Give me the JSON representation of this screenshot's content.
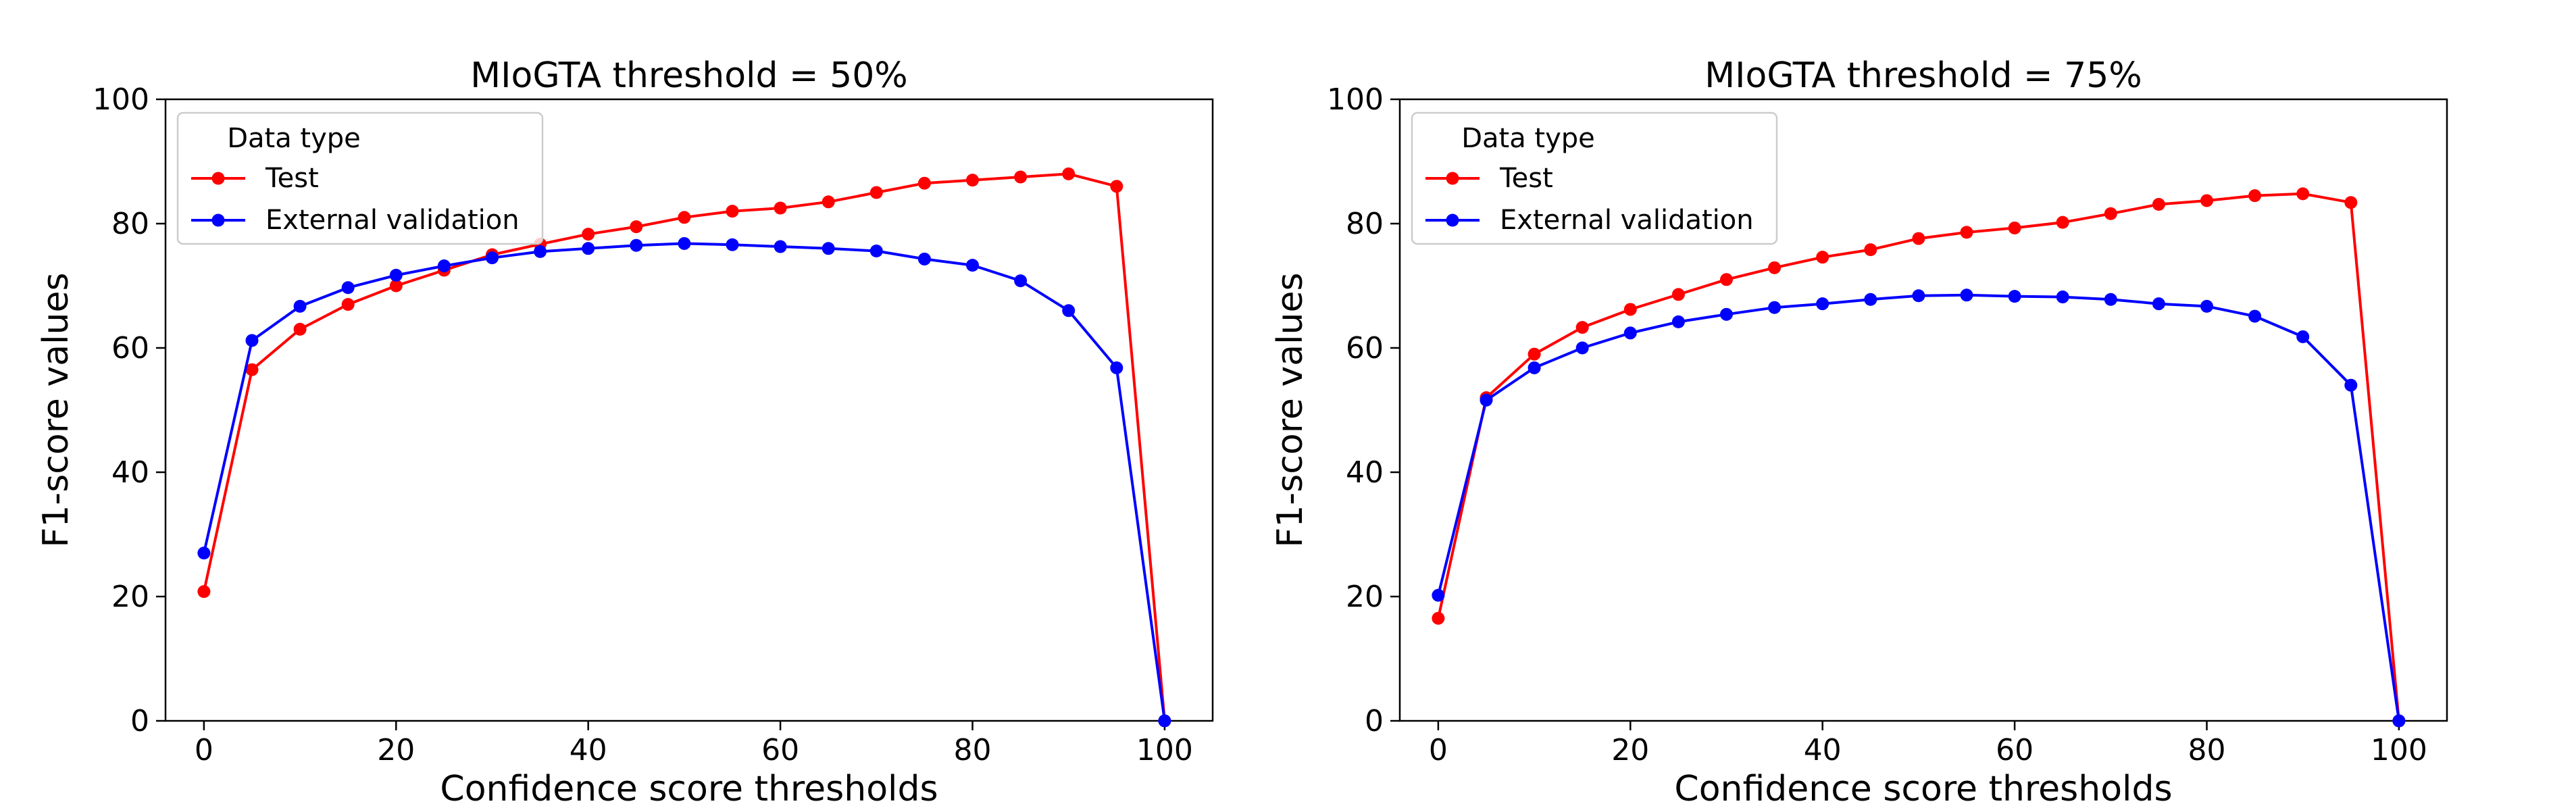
{
  "chart_data": [
    {
      "type": "line",
      "title": "MIoGTA threshold = 50%",
      "xlabel": "Confidence score thresholds",
      "ylabel": "F1-score values",
      "xlim": [
        -4,
        105
      ],
      "ylim": [
        0,
        100
      ],
      "xticks": [
        "0",
        "20",
        "40",
        "60",
        "80",
        "100"
      ],
      "yticks": [
        "0",
        "20",
        "40",
        "60",
        "80",
        "100"
      ],
      "x": [
        0,
        5,
        10,
        15,
        20,
        25,
        30,
        35,
        40,
        45,
        50,
        55,
        60,
        65,
        70,
        75,
        80,
        85,
        90,
        95,
        100
      ],
      "legend": {
        "title": "Data type",
        "placement": "top-left"
      },
      "series": [
        {
          "name": "Test",
          "color": "#ff0000",
          "values": [
            20.8,
            56.5,
            63,
            67,
            70,
            72.5,
            75,
            76.7,
            78.3,
            79.5,
            81,
            82,
            82.5,
            83.5,
            85,
            86.5,
            87,
            87.5,
            88,
            86,
            0
          ]
        },
        {
          "name": "External validation",
          "color": "#0000ff",
          "values": [
            27,
            61.2,
            66.7,
            69.7,
            71.7,
            73.2,
            74.5,
            75.5,
            76,
            76.5,
            76.8,
            76.6,
            76.3,
            76,
            75.6,
            74.3,
            73.3,
            70.8,
            66,
            56.8,
            0
          ]
        }
      ]
    },
    {
      "type": "line",
      "title": "MIoGTA threshold = 75%",
      "xlabel": "Confidence score thresholds",
      "ylabel": "F1-score values",
      "xlim": [
        -4,
        105
      ],
      "ylim": [
        0,
        100
      ],
      "xticks": [
        "0",
        "20",
        "40",
        "60",
        "80",
        "100"
      ],
      "yticks": [
        "0",
        "20",
        "40",
        "60",
        "80",
        "100"
      ],
      "x": [
        0,
        5,
        10,
        15,
        20,
        25,
        30,
        35,
        40,
        45,
        50,
        55,
        60,
        65,
        70,
        75,
        80,
        85,
        90,
        95,
        100
      ],
      "legend": {
        "title": "Data type",
        "placement": "top-left"
      },
      "series": [
        {
          "name": "Test",
          "color": "#ff0000",
          "values": [
            16.5,
            52,
            59,
            63.3,
            66.2,
            68.6,
            71,
            72.9,
            74.6,
            75.8,
            77.6,
            78.6,
            79.3,
            80.2,
            81.6,
            83.1,
            83.7,
            84.5,
            84.8,
            83.4,
            0
          ]
        },
        {
          "name": "External validation",
          "color": "#0000ff",
          "values": [
            20.2,
            51.6,
            56.8,
            60,
            62.4,
            64.2,
            65.4,
            66.5,
            67.1,
            67.8,
            68.4,
            68.5,
            68.3,
            68.2,
            67.8,
            67.1,
            66.7,
            65.1,
            61.8,
            54,
            0
          ]
        }
      ]
    }
  ]
}
